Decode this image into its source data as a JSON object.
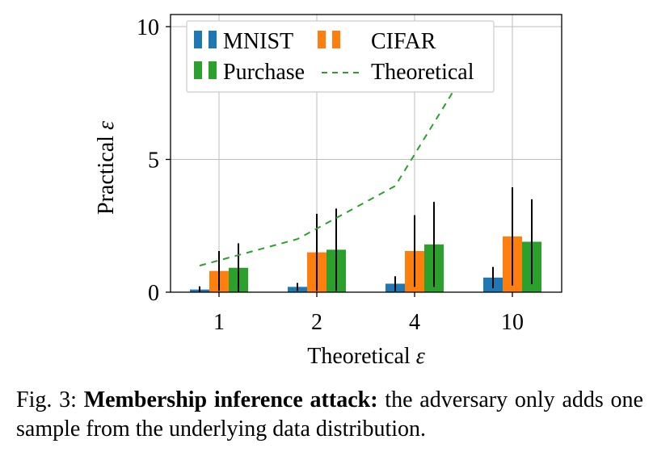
{
  "chart_data": {
    "type": "bar",
    "categories": [
      "1",
      "2",
      "4",
      "10"
    ],
    "xlabel": "Theoretical",
    "ylabel": "Practical",
    "symbol": "ε",
    "ylim": [
      0,
      10
    ],
    "yticks": [
      "0",
      "5",
      "10"
    ],
    "grid": true,
    "legend_position": "top",
    "series": [
      {
        "name": "MNIST",
        "color": "#1f77b4",
        "values": [
          0.1,
          0.2,
          0.32,
          0.55
        ],
        "err": [
          0.12,
          0.15,
          0.28,
          0.4
        ]
      },
      {
        "name": "CIFAR",
        "color": "#ff7f0e",
        "values": [
          0.8,
          1.5,
          1.55,
          2.1
        ],
        "err": [
          0.75,
          1.45,
          1.35,
          1.85
        ]
      },
      {
        "name": "Purchase",
        "color": "#2ca02c",
        "values": [
          0.92,
          1.6,
          1.8,
          1.9
        ],
        "err": [
          0.92,
          1.55,
          1.6,
          1.6
        ]
      }
    ],
    "line": {
      "name": "Theoretical",
      "color": "#2ca02c",
      "values": [
        1,
        2,
        4,
        10
      ]
    }
  },
  "caption": {
    "prefix": "Fig. 3: ",
    "bold": "Membership inference attack:",
    "rest": " the adversary only adds one sample from the underlying data distribution."
  }
}
